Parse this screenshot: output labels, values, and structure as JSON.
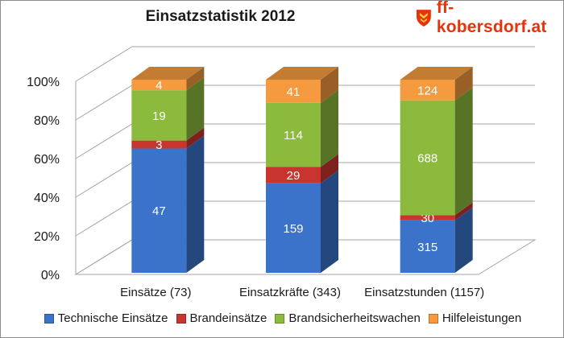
{
  "brand": {
    "text": "ff-kobersdorf.at",
    "icon": "fire-brigade-shield-icon",
    "color": "#e8320b"
  },
  "chart_data": {
    "type": "bar",
    "stacked": "percent",
    "style": "3d-column",
    "title": "Einsatzstatistik 2012",
    "xlabel": "",
    "ylabel": "",
    "ylim": [
      0,
      100
    ],
    "y_ticks": [
      "0%",
      "20%",
      "40%",
      "60%",
      "80%",
      "100%"
    ],
    "grid": true,
    "legend_position": "bottom",
    "categories": [
      "Einsätze (73)",
      "Einsatzkräfte (343)",
      "Einsatzstunden (1157)"
    ],
    "series": [
      {
        "name": "Technische Einsätze",
        "color": "#3a73c9",
        "values": [
          47,
          159,
          315
        ]
      },
      {
        "name": "Brandeinsätze",
        "color": "#c8352e",
        "values": [
          3,
          29,
          30
        ]
      },
      {
        "name": "Brandsicherheitswachen",
        "color": "#8cba3c",
        "values": [
          19,
          114,
          688
        ]
      },
      {
        "name": "Hilfeleistungen",
        "color": "#f59a3e",
        "values": [
          4,
          41,
          124
        ]
      }
    ]
  }
}
